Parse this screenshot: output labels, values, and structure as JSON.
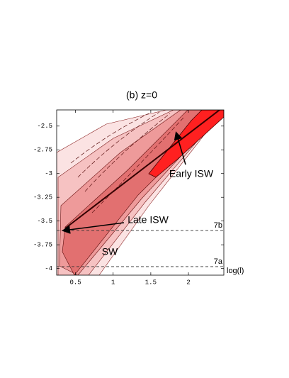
{
  "chart_data": {
    "type": "contour",
    "title": "(b) z=0",
    "x_label": "log(l)",
    "xlim": [
      0.25,
      2.47
    ],
    "ylim": [
      -4.07,
      -2.33
    ],
    "xticks": [
      0.5,
      1,
      1.5,
      2
    ],
    "yticks": [
      -2.5,
      -2.75,
      -3,
      -3.25,
      -3.5,
      -3.75,
      -4
    ],
    "reference_lines": [
      {
        "value": -3.6,
        "label": "7b"
      },
      {
        "value": -3.98,
        "label": "7a"
      }
    ],
    "annotations": [
      "Early ISW",
      "Late ISW",
      "SW"
    ]
  }
}
